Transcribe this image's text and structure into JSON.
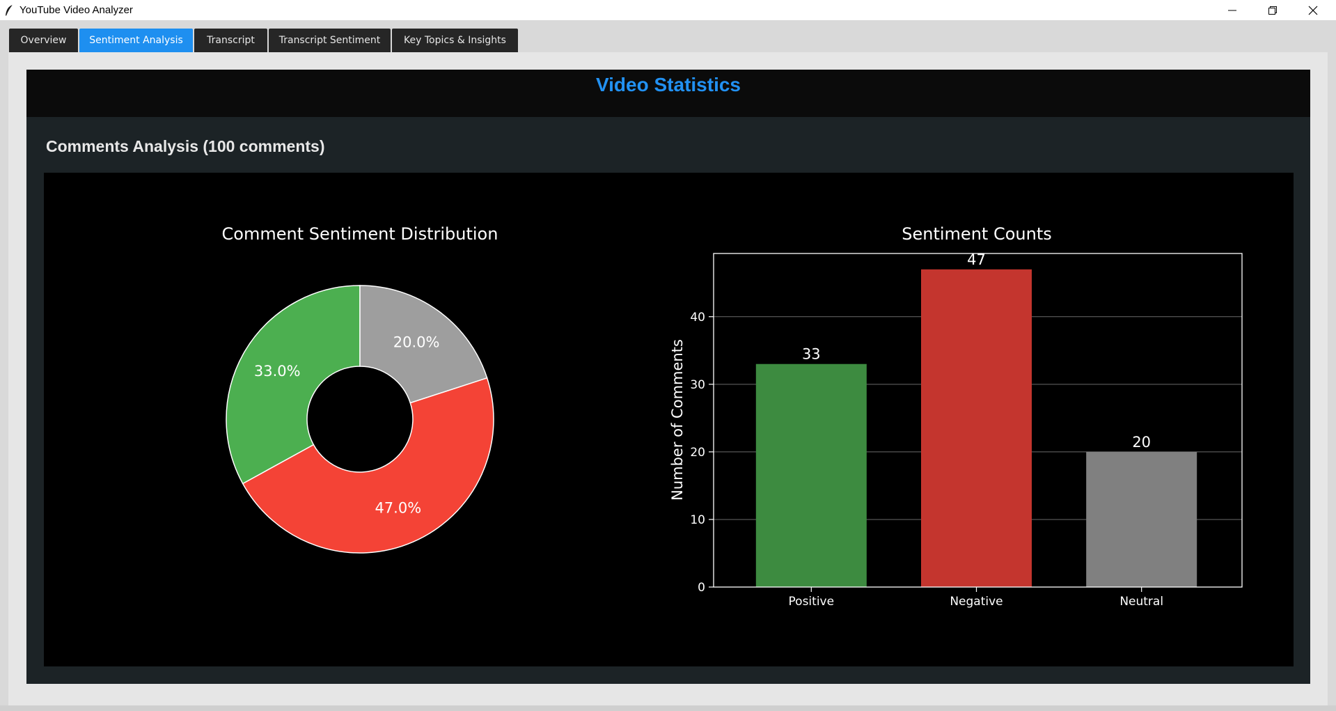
{
  "window": {
    "title": "YouTube Video Analyzer",
    "controls": [
      "minimize-icon",
      "restore-icon",
      "close-icon"
    ]
  },
  "tabs": [
    {
      "label": "Overview",
      "active": false
    },
    {
      "label": "Sentiment Analysis",
      "active": true
    },
    {
      "label": "Transcript",
      "active": false
    },
    {
      "label": "Transcript Sentiment",
      "active": false
    },
    {
      "label": "Key Topics & Insights",
      "active": false
    }
  ],
  "header": {
    "title": "Video Statistics"
  },
  "section": {
    "title": "Comments Analysis (100 comments)"
  },
  "colors": {
    "accent": "#1e8ff0",
    "positive_pie": "#4caf50",
    "negative_pie": "#f44336",
    "neutral_pie": "#9e9e9e",
    "positive_bar": "#3d8b40",
    "negative_bar": "#c4352e",
    "neutral_bar": "#808080"
  },
  "chart_data": [
    {
      "type": "pie",
      "title": "Comment Sentiment Distribution",
      "categories": [
        "Positive",
        "Negative",
        "Neutral"
      ],
      "values": [
        33.0,
        47.0,
        20.0
      ],
      "labels": [
        "33.0%",
        "47.0%",
        "20.0%"
      ],
      "donut": true
    },
    {
      "type": "bar",
      "title": "Sentiment Counts",
      "categories": [
        "Positive",
        "Negative",
        "Neutral"
      ],
      "values": [
        33,
        47,
        20
      ],
      "value_labels": [
        "33",
        "47",
        "20"
      ],
      "ylabel": "Number of Comments",
      "xlabel": "",
      "ylim": [
        0,
        49.35
      ],
      "yticks": [
        0,
        10,
        20,
        30,
        40
      ],
      "grid": true
    }
  ]
}
